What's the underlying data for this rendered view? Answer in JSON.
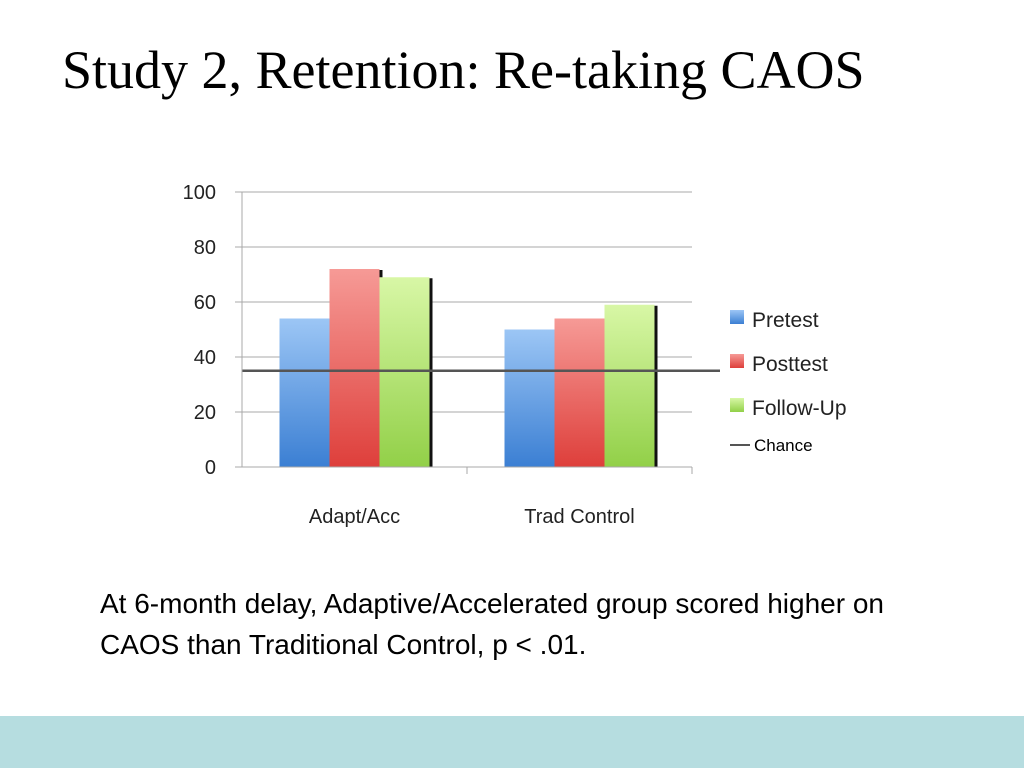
{
  "slide": {
    "title": "Study 2, Retention: Re-taking CAOS",
    "caption": "At 6-month delay, Adaptive/Accelerated group scored higher on CAOS than Traditional Control, p < .01.",
    "footer_color": "#b6dde0"
  },
  "chart_data": {
    "type": "bar",
    "title": "",
    "xlabel": "",
    "ylabel": "",
    "categories": [
      "Adapt/Acc",
      "Trad Control"
    ],
    "series": [
      {
        "name": "Pretest",
        "values": [
          54,
          50
        ],
        "color": "#4a8fdc"
      },
      {
        "name": "Posttest",
        "values": [
          72,
          54
        ],
        "color": "#e8534f"
      },
      {
        "name": "Follow-Up",
        "values": [
          69,
          59
        ],
        "color": "#a3dd5a"
      }
    ],
    "reference_line": {
      "name": "Chance",
      "value": 35,
      "color": "#555555"
    },
    "ylim": [
      0,
      100
    ],
    "yticks": [
      0,
      20,
      40,
      60,
      80,
      100
    ],
    "grid": true,
    "legend_position": "right"
  }
}
